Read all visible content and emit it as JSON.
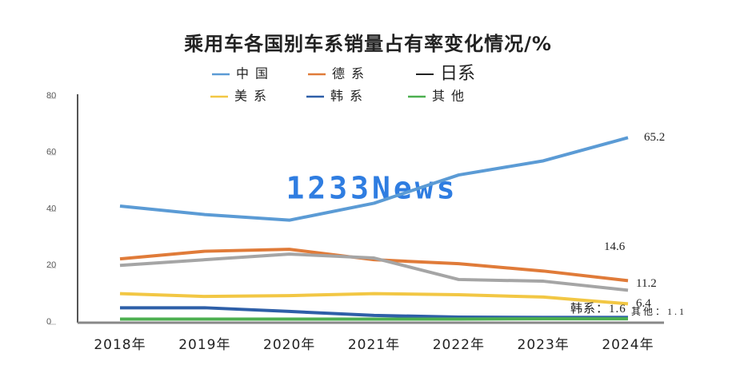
{
  "chart_data": {
    "type": "line",
    "title": "乘用车各国别车系销量占有率变化情况/%",
    "watermark": "1233News",
    "categories": [
      "2018年",
      "2019年",
      "2020年",
      "2021年",
      "2022年",
      "2023年",
      "2024年"
    ],
    "ylim": [
      0,
      80
    ],
    "yticks": [
      0,
      20,
      40,
      60,
      80
    ],
    "legend": "top",
    "series": [
      {
        "name": "中国",
        "color": "#5b9bd5",
        "values": [
          41,
          38,
          36,
          42,
          52,
          57,
          65.2
        ],
        "value_labels": [
          null,
          null,
          null,
          null,
          null,
          null,
          "65.2"
        ]
      },
      {
        "name": "德系",
        "color": "#e07b39",
        "values": [
          22.3,
          25,
          25.7,
          22,
          20.6,
          18,
          14.6
        ],
        "value_labels": [
          null,
          null,
          null,
          null,
          null,
          null,
          "14.6"
        ]
      },
      {
        "name": "日系",
        "color": "#a5a5a5",
        "values": [
          20,
          22,
          24,
          22.6,
          15,
          14.4,
          11.2
        ],
        "value_labels": [
          null,
          null,
          null,
          null,
          null,
          null,
          "11.2"
        ]
      },
      {
        "name": "美系",
        "color": "#f2c744",
        "values": [
          10,
          9,
          9.3,
          10,
          9.6,
          8.8,
          6.4
        ],
        "value_labels": [
          null,
          null,
          null,
          null,
          null,
          null,
          "6.4"
        ]
      },
      {
        "name": "韩系",
        "color": "#2e5fa8",
        "values": [
          5,
          5,
          3.7,
          2.3,
          1.7,
          1.6,
          1.6
        ],
        "value_labels": [
          null,
          null,
          null,
          null,
          null,
          null,
          "韩系：1.6"
        ]
      },
      {
        "name": "其他",
        "color": "#4caf50",
        "values": [
          1,
          1,
          1,
          1,
          1,
          1.1,
          1.1
        ],
        "value_labels": [
          null,
          null,
          null,
          null,
          null,
          null,
          "其他：1.1"
        ]
      }
    ]
  }
}
